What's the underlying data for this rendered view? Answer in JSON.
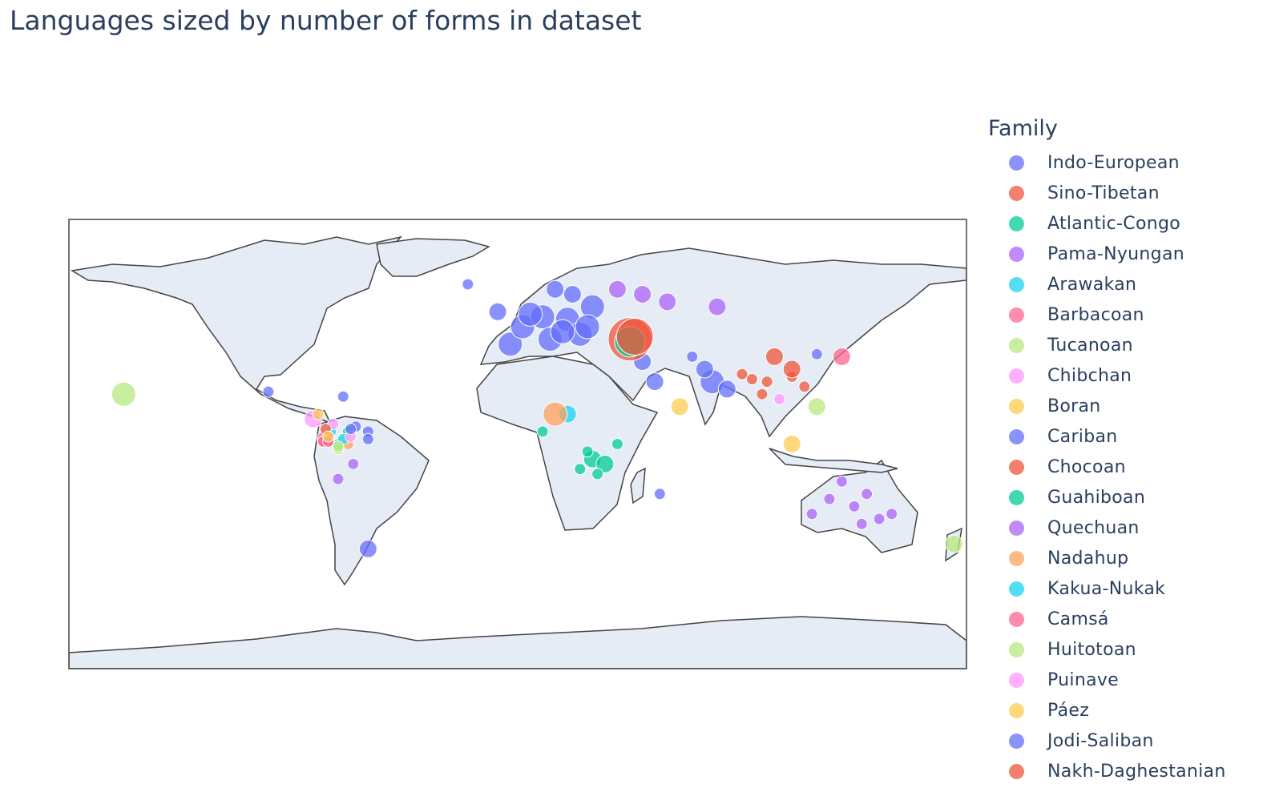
{
  "title": "Languages sized by number of forms in dataset",
  "legend": {
    "title": "Family",
    "items": [
      {
        "label": "Indo-European",
        "color": "#636efa"
      },
      {
        "label": "Sino-Tibetan",
        "color": "#EF553B"
      },
      {
        "label": "Atlantic-Congo",
        "color": "#00cc96"
      },
      {
        "label": "Pama-Nyungan",
        "color": "#ab63fa"
      },
      {
        "label": "Arawakan",
        "color": "#19d3f3"
      },
      {
        "label": "Barbacoan",
        "color": "#FF6692"
      },
      {
        "label": "Tucanoan",
        "color": "#B6E880"
      },
      {
        "label": "Chibchan",
        "color": "#FF97FF"
      },
      {
        "label": "Boran",
        "color": "#FECB52"
      },
      {
        "label": "Cariban",
        "color": "#636efa"
      },
      {
        "label": "Chocoan",
        "color": "#EF553B"
      },
      {
        "label": "Guahiboan",
        "color": "#00cc96"
      },
      {
        "label": "Quechuan",
        "color": "#ab63fa"
      },
      {
        "label": "Nadahup",
        "color": "#FFA15A"
      },
      {
        "label": "Kakua-Nukak",
        "color": "#19d3f3"
      },
      {
        "label": "Camsá",
        "color": "#FF6692"
      },
      {
        "label": "Huitotoan",
        "color": "#B6E880"
      },
      {
        "label": "Puinave",
        "color": "#FF97FF"
      },
      {
        "label": "Páez",
        "color": "#FECB52"
      },
      {
        "label": "Jodi-Saliban",
        "color": "#636efa"
      },
      {
        "label": "Nakh-Daghestanian",
        "color": "#EF553B"
      }
    ]
  },
  "map": {
    "projection": "equirectangular",
    "land_color": "#e5ecf6",
    "coast_color": "#444444",
    "lon_range": [
      -180,
      180
    ],
    "lat_range": [
      -90,
      90
    ],
    "points": [
      {
        "lon": -3,
        "lat": 40,
        "family": "Indo-European",
        "size": 3
      },
      {
        "lon": 2,
        "lat": 47,
        "family": "Indo-European",
        "size": 3
      },
      {
        "lon": 10,
        "lat": 51,
        "family": "Indo-European",
        "size": 3
      },
      {
        "lon": 13,
        "lat": 42,
        "family": "Indo-European",
        "size": 3
      },
      {
        "lon": 20,
        "lat": 50,
        "family": "Indo-European",
        "size": 3
      },
      {
        "lon": 25,
        "lat": 44,
        "family": "Indo-European",
        "size": 3
      },
      {
        "lon": 30,
        "lat": 55,
        "family": "Indo-European",
        "size": 3
      },
      {
        "lon": 22,
        "lat": 60,
        "family": "Indo-European",
        "size": 2
      },
      {
        "lon": -8,
        "lat": 53,
        "family": "Indo-European",
        "size": 2
      },
      {
        "lon": 15,
        "lat": 62,
        "family": "Indo-European",
        "size": 2
      },
      {
        "lon": 5,
        "lat": 52,
        "family": "Indo-European",
        "size": 3
      },
      {
        "lon": 28,
        "lat": 47,
        "family": "Indo-European",
        "size": 3
      },
      {
        "lon": 18,
        "lat": 45,
        "family": "Indo-European",
        "size": 3
      },
      {
        "lon": 50,
        "lat": 33,
        "family": "Indo-European",
        "size": 2
      },
      {
        "lon": 78,
        "lat": 25,
        "family": "Indo-European",
        "size": 3
      },
      {
        "lon": 75,
        "lat": 30,
        "family": "Indo-European",
        "size": 2
      },
      {
        "lon": 84,
        "lat": 22,
        "family": "Indo-European",
        "size": 2
      },
      {
        "lon": 70,
        "lat": 35,
        "family": "Indo-European",
        "size": 1
      },
      {
        "lon": 55,
        "lat": 25,
        "family": "Indo-European",
        "size": 2
      },
      {
        "lon": -20,
        "lat": 64,
        "family": "Indo-European",
        "size": 1
      },
      {
        "lon": -70,
        "lat": 19,
        "family": "Indo-European",
        "size": 1
      },
      {
        "lon": -60,
        "lat": -42,
        "family": "Indo-European",
        "size": 2
      },
      {
        "lon": 57,
        "lat": -20,
        "family": "Indo-European",
        "size": 1
      },
      {
        "lon": -60,
        "lat": 5,
        "family": "Indo-European",
        "size": 1
      },
      {
        "lon": -100,
        "lat": 21,
        "family": "Indo-European",
        "size": 1
      },
      {
        "lon": 120,
        "lat": 36,
        "family": "Indo-European",
        "size": 1
      },
      {
        "lon": 45,
        "lat": 42,
        "family": "Sino-Tibetan",
        "size": 6
      },
      {
        "lon": 103,
        "lat": 35,
        "family": "Sino-Tibetan",
        "size": 2
      },
      {
        "lon": 110,
        "lat": 27,
        "family": "Sino-Tibetan",
        "size": 1
      },
      {
        "lon": 100,
        "lat": 25,
        "family": "Sino-Tibetan",
        "size": 1
      },
      {
        "lon": 94,
        "lat": 26,
        "family": "Sino-Tibetan",
        "size": 1
      },
      {
        "lon": 90,
        "lat": 28,
        "family": "Sino-Tibetan",
        "size": 1
      },
      {
        "lon": 115,
        "lat": 23,
        "family": "Sino-Tibetan",
        "size": 1
      },
      {
        "lon": 98,
        "lat": 20,
        "family": "Sino-Tibetan",
        "size": 1
      },
      {
        "lon": 45,
        "lat": 41,
        "family": "Atlantic-Congo",
        "size": 4
      },
      {
        "lon": 30,
        "lat": -6,
        "family": "Atlantic-Congo",
        "size": 2
      },
      {
        "lon": 35,
        "lat": -8,
        "family": "Atlantic-Congo",
        "size": 2
      },
      {
        "lon": 28,
        "lat": -3,
        "family": "Atlantic-Congo",
        "size": 1
      },
      {
        "lon": 10,
        "lat": 5,
        "family": "Atlantic-Congo",
        "size": 1
      },
      {
        "lon": 32,
        "lat": -12,
        "family": "Atlantic-Congo",
        "size": 1
      },
      {
        "lon": 25,
        "lat": -10,
        "family": "Atlantic-Congo",
        "size": 1
      },
      {
        "lon": 40,
        "lat": 0,
        "family": "Atlantic-Congo",
        "size": 1
      },
      {
        "lon": 135,
        "lat": -25,
        "family": "Pama-Nyungan",
        "size": 1
      },
      {
        "lon": 140,
        "lat": -20,
        "family": "Pama-Nyungan",
        "size": 1
      },
      {
        "lon": 125,
        "lat": -22,
        "family": "Pama-Nyungan",
        "size": 1
      },
      {
        "lon": 145,
        "lat": -30,
        "family": "Pama-Nyungan",
        "size": 1
      },
      {
        "lon": 130,
        "lat": -15,
        "family": "Pama-Nyungan",
        "size": 1
      },
      {
        "lon": 118,
        "lat": -28,
        "family": "Pama-Nyungan",
        "size": 1
      },
      {
        "lon": 150,
        "lat": -28,
        "family": "Pama-Nyungan",
        "size": 1
      },
      {
        "lon": 138,
        "lat": -32,
        "family": "Pama-Nyungan",
        "size": 1
      },
      {
        "lon": 60,
        "lat": 57,
        "family": "Pama-Nyungan",
        "size": 2
      },
      {
        "lon": 80,
        "lat": 55,
        "family": "Pama-Nyungan",
        "size": 2
      },
      {
        "lon": 40,
        "lat": 62,
        "family": "Pama-Nyungan",
        "size": 2
      },
      {
        "lon": 50,
        "lat": 60,
        "family": "Pama-Nyungan",
        "size": 2
      },
      {
        "lon": -75,
        "lat": 5,
        "family": "Arawakan",
        "size": 1
      },
      {
        "lon": -72,
        "lat": 0,
        "family": "Arawakan",
        "size": 1
      },
      {
        "lon": 20,
        "lat": 12,
        "family": "Arawakan",
        "size": 2
      },
      {
        "lon": -77,
        "lat": 2,
        "family": "Barbacoan",
        "size": 2
      },
      {
        "lon": -78,
        "lat": 1,
        "family": "Barbacoan",
        "size": 1
      },
      {
        "lon": 120,
        "lat": 15,
        "family": "Tucanoan",
        "size": 2
      },
      {
        "lon": -70,
        "lat": 1,
        "family": "Tucanoan",
        "size": 1
      },
      {
        "lon": -72,
        "lat": -2,
        "family": "Tucanoan",
        "size": 1
      },
      {
        "lon": -82,
        "lat": 10,
        "family": "Chibchan",
        "size": 2
      },
      {
        "lon": -74,
        "lat": 8,
        "family": "Chibchan",
        "size": 1
      },
      {
        "lon": 105,
        "lat": 18,
        "family": "Chibchan",
        "size": 1
      },
      {
        "lon": -80,
        "lat": 12,
        "family": "Boran",
        "size": 1
      },
      {
        "lon": 110,
        "lat": 0,
        "family": "Boran",
        "size": 2
      },
      {
        "lon": 65,
        "lat": 15,
        "family": "Boran",
        "size": 2
      },
      {
        "lon": -60,
        "lat": 2,
        "family": "Cariban",
        "size": 1
      },
      {
        "lon": -65,
        "lat": 7,
        "family": "Cariban",
        "size": 1
      },
      {
        "lon": -77,
        "lat": 6,
        "family": "Chocoan",
        "size": 1
      },
      {
        "lon": 110,
        "lat": 30,
        "family": "Chocoan",
        "size": 2
      },
      {
        "lon": -68,
        "lat": 5,
        "family": "Guahiboan",
        "size": 1
      },
      {
        "lon": -66,
        "lat": -8,
        "family": "Quechuan",
        "size": 1
      },
      {
        "lon": -72,
        "lat": -14,
        "family": "Quechuan",
        "size": 1
      },
      {
        "lon": 15,
        "lat": 12,
        "family": "Nadahup",
        "size": 3
      },
      {
        "lon": -68,
        "lat": 0,
        "family": "Nadahup",
        "size": 1
      },
      {
        "lon": -70,
        "lat": 2,
        "family": "Kakua-Nukak",
        "size": 1
      },
      {
        "lon": -76,
        "lat": 1,
        "family": "Camsá",
        "size": 1
      },
      {
        "lon": 130,
        "lat": 35,
        "family": "Camsá",
        "size": 2
      },
      {
        "lon": -72,
        "lat": -1,
        "family": "Huitotoan",
        "size": 1
      },
      {
        "lon": 175,
        "lat": -40,
        "family": "Huitotoan",
        "size": 2
      },
      {
        "lon": -158,
        "lat": 20,
        "family": "Huitotoan",
        "size": 3
      },
      {
        "lon": -67,
        "lat": 3,
        "family": "Puinave",
        "size": 1
      },
      {
        "lon": -76,
        "lat": 3,
        "family": "Páez",
        "size": 1
      },
      {
        "lon": -67,
        "lat": 6,
        "family": "Jodi-Saliban",
        "size": 1
      },
      {
        "lon": 47,
        "lat": 43,
        "family": "Nakh-Daghestanian",
        "size": 5
      }
    ]
  }
}
